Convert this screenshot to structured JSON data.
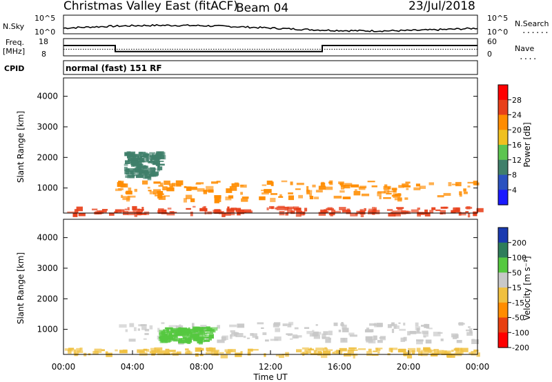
{
  "header": {
    "station": "Christmas Valley East (fitACF)",
    "beam": "Beam 04",
    "date": "23/Jul/2018"
  },
  "top_panels": {
    "nsky_label": "N.Sky",
    "nsearch_label": "N.Search",
    "nsearch_dots": "......",
    "nsky_ticks": [
      "10^5",
      "10^0"
    ],
    "nsearch_ticks": [
      "10^5",
      "10^0"
    ],
    "freq_label_1": "Freq.",
    "freq_label_2": "[MHz]",
    "freq_ticks": [
      "18",
      "8"
    ],
    "nave_label": "Nave",
    "nave_dots": "....",
    "nave_ticks": [
      "60",
      "0"
    ],
    "cpid_label": "CPID",
    "cpid_text": "normal (fast) 151 RF",
    "freq_series_mhz": {
      "x_hours": [
        0,
        3,
        3,
        15,
        15,
        24
      ],
      "values": [
        14,
        14,
        10.5,
        10.5,
        14,
        14
      ]
    },
    "nave_series": {
      "x_hours": [
        0,
        24
      ],
      "values": [
        23,
        23
      ]
    }
  },
  "chart_data": [
    {
      "type": "heatmap",
      "title": "Power",
      "ylabel": "Slant Range [km]",
      "xlabel": "",
      "yticks": [
        1000,
        2000,
        3000,
        4000
      ],
      "ylim": [
        180,
        4600
      ],
      "xlim_hours": [
        0,
        24
      ],
      "colorbar": {
        "label": "Power [dB]",
        "ticks": [
          "28",
          "24",
          "20",
          "16",
          "12",
          "8",
          "4"
        ],
        "colors": [
          "#ff0000",
          "#e8401a",
          "#ff8c00",
          "#f0c020",
          "#5cc450",
          "#3f7f6a",
          "#2a52c0",
          "#1a1aff"
        ]
      },
      "echo_bands": [
        {
          "x_hours": [
            3.0,
            24.0
          ],
          "range_km": [
            650,
            1250
          ],
          "color": "#ff8c00"
        },
        {
          "x_hours": [
            3.5,
            5.5
          ],
          "range_km": [
            1400,
            2200
          ],
          "color": "#3f7f6a"
        },
        {
          "x_hours": [
            0.0,
            24.0
          ],
          "range_km": [
            180,
            420
          ],
          "color": "#e8401a"
        }
      ]
    },
    {
      "type": "heatmap",
      "title": "Velocity",
      "ylabel": "Slant Range [km]",
      "xlabel": "Time UT",
      "xticks": [
        "00:00",
        "04:00",
        "08:00",
        "12:00",
        "16:00",
        "20:00",
        "00:00"
      ],
      "yticks": [
        1000,
        2000,
        3000,
        4000
      ],
      "ylim": [
        180,
        4600
      ],
      "xlim_hours": [
        0,
        24
      ],
      "colorbar": {
        "label": "Velocity [m s⁻¹]",
        "ticks": [
          "200",
          "100",
          "50",
          "15",
          "-15",
          "-50",
          "-100",
          "-200"
        ],
        "colors": [
          "#1a3ab0",
          "#2e7d5a",
          "#55c840",
          "#c8c8c8",
          "#f0c040",
          "#ff8c00",
          "#e84010",
          "#ff0000"
        ]
      },
      "echo_bands": [
        {
          "x_hours": [
            3.0,
            24.0
          ],
          "range_km": [
            650,
            1250
          ],
          "color": "#c8c8c8"
        },
        {
          "x_hours": [
            5.5,
            8.5
          ],
          "range_km": [
            650,
            1100
          ],
          "color": "#55c840"
        },
        {
          "x_hours": [
            0.0,
            24.0
          ],
          "range_km": [
            180,
            420
          ],
          "color": "#f0c040"
        }
      ]
    }
  ]
}
